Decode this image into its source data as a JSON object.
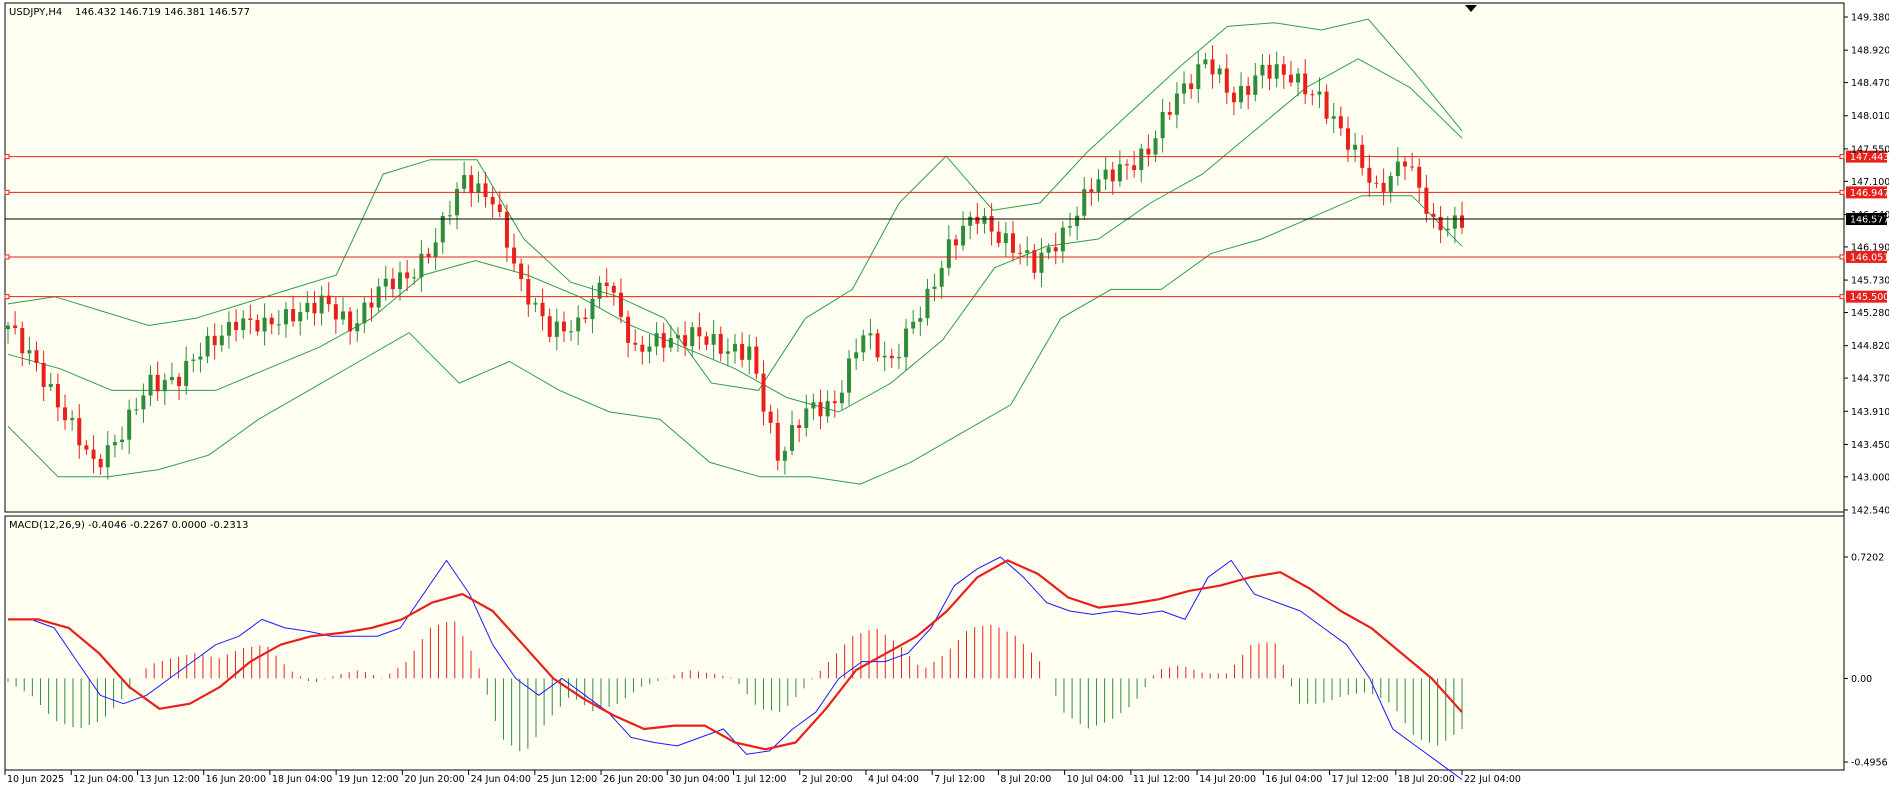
{
  "chart_data": [
    {
      "type": "candlestick",
      "symbol_label": "USDJPY,H4",
      "ohlc_readout": "146.432 146.719 146.381 146.577",
      "y_ticks": [
        "149.380",
        "148.920",
        "148.470",
        "148.010",
        "147.550",
        "147.100",
        "146.640",
        "146.190",
        "145.730",
        "145.280",
        "144.820",
        "144.370",
        "143.910",
        "143.450",
        "143.000",
        "142.540"
      ],
      "ylim": [
        142.54,
        149.38
      ],
      "x_ticks": [
        "10 Jun 2025",
        "12 Jun 04:00",
        "13 Jun 12:00",
        "16 Jun 20:00",
        "18 Jun 04:00",
        "19 Jun 12:00",
        "20 Jun 20:00",
        "24 Jun 04:00",
        "25 Jun 12:00",
        "26 Jun 20:00",
        "30 Jun 04:00",
        "1 Jul 12:00",
        "2 Jul 20:00",
        "4 Jul 04:00",
        "7 Jul 12:00",
        "8 Jul 20:00",
        "10 Jul 04:00",
        "11 Jul 12:00",
        "14 Jul 20:00",
        "16 Jul 04:00",
        "17 Jul 12:00",
        "18 Jul 20:00",
        "22 Jul 04:00"
      ],
      "close_path": [
        145.05,
        144.6,
        143.8,
        143.2,
        143.6,
        144.3,
        144.4,
        144.8,
        145.2,
        145.05,
        145.3,
        145.4,
        145.1,
        145.6,
        145.75,
        146.3,
        147.1,
        146.9,
        145.6,
        145.1,
        145.05,
        145.8,
        144.7,
        144.9,
        145.0,
        144.75,
        144.8,
        143.2,
        144.0,
        143.95,
        145.05,
        144.55,
        145.3,
        146.2,
        146.6,
        146.3,
        145.9,
        146.4,
        147.0,
        147.3,
        147.5,
        148.3,
        148.8,
        148.2,
        148.7,
        148.5,
        148.3,
        147.6,
        147.0,
        147.4,
        146.5,
        146.57
      ],
      "indicator_lines": {
        "upper_band": [
          145.4,
          145.5,
          145.3,
          145.1,
          145.2,
          145.4,
          145.6,
          145.8,
          147.2,
          147.4,
          147.4,
          146.3,
          145.7,
          145.5,
          145.2,
          144.3,
          144.2,
          145.2,
          145.6,
          146.8,
          147.45,
          146.7,
          146.8,
          147.5,
          148.1,
          148.7,
          149.25,
          149.3,
          149.2,
          149.35,
          148.6,
          147.8
        ],
        "middle_band": [
          144.7,
          144.5,
          144.2,
          144.2,
          144.2,
          144.5,
          144.8,
          145.2,
          145.8,
          146.0,
          145.8,
          145.5,
          145.1,
          144.8,
          144.5,
          144.1,
          143.9,
          144.3,
          144.9,
          145.9,
          146.2,
          146.3,
          146.8,
          147.2,
          147.8,
          148.4,
          148.8,
          148.4,
          147.7
        ],
        "lower_band": [
          143.7,
          143.0,
          143.0,
          143.1,
          143.3,
          143.8,
          144.2,
          144.6,
          145.0,
          144.3,
          144.6,
          144.2,
          143.9,
          143.8,
          143.2,
          143.0,
          143.0,
          142.9,
          143.2,
          143.6,
          144.0,
          145.2,
          145.6,
          145.6,
          146.1,
          146.3,
          146.6,
          146.9,
          146.9,
          146.2
        ]
      },
      "price_levels": [
        {
          "label": "147.443",
          "value": 147.443
        },
        {
          "label": "146.947",
          "value": 146.947
        },
        {
          "label": "146.051",
          "value": 146.051
        },
        {
          "label": "145.500",
          "value": 145.5
        }
      ],
      "current_price": {
        "label": "146.577",
        "value": 146.577
      },
      "colors": {
        "bull": "#2e8b3a",
        "bear": "#e8201c",
        "level": "#e8201c",
        "bands": "#2e9d4c",
        "current": "#000000"
      }
    },
    {
      "type": "macd",
      "label": "MACD(12,26,9) -0.4046 -0.2267 0.0000 -0.2313",
      "y_ticks": [
        "0.7202",
        "0.00",
        "-0.4956"
      ],
      "ylim": [
        -0.4956,
        0.7202
      ],
      "macd_line": [
        0.35,
        0.35,
        0.3,
        0.1,
        -0.1,
        -0.15,
        -0.1,
        0.0,
        0.1,
        0.2,
        0.25,
        0.35,
        0.3,
        0.28,
        0.25,
        0.25,
        0.25,
        0.3,
        0.5,
        0.7,
        0.5,
        0.2,
        0.0,
        -0.1,
        0.0,
        -0.1,
        -0.2,
        -0.35,
        -0.38,
        -0.4,
        -0.35,
        -0.3,
        -0.45,
        -0.43,
        -0.3,
        -0.2,
        0.0,
        0.1,
        0.1,
        0.15,
        0.3,
        0.55,
        0.65,
        0.72,
        0.6,
        0.45,
        0.4,
        0.38,
        0.4,
        0.38,
        0.4,
        0.35,
        0.6,
        0.7,
        0.5,
        0.45,
        0.4,
        0.3,
        0.2,
        0.0,
        -0.3,
        -0.4,
        -0.5,
        -0.6
      ],
      "signal_line": [
        0.35,
        0.35,
        0.3,
        0.15,
        -0.05,
        -0.18,
        -0.15,
        -0.05,
        0.1,
        0.2,
        0.25,
        0.27,
        0.3,
        0.35,
        0.45,
        0.5,
        0.4,
        0.2,
        0.0,
        -0.12,
        -0.22,
        -0.3,
        -0.28,
        -0.28,
        -0.38,
        -0.42,
        -0.38,
        -0.18,
        0.05,
        0.15,
        0.25,
        0.4,
        0.6,
        0.7,
        0.62,
        0.48,
        0.42,
        0.44,
        0.47,
        0.52,
        0.55,
        0.6,
        0.63,
        0.53,
        0.4,
        0.3,
        0.15,
        0.0,
        -0.2
      ],
      "histogram": [
        -0.02,
        -0.1,
        -0.25,
        -0.3,
        -0.25,
        -0.1,
        0.08,
        0.12,
        0.15,
        0.12,
        0.18,
        0.2,
        0.05,
        -0.03,
        0.02,
        0.05,
        0.0,
        0.1,
        0.3,
        0.35,
        0.1,
        -0.35,
        -0.45,
        -0.25,
        -0.1,
        -0.2,
        -0.15,
        -0.05,
        0.0,
        0.05,
        0.03,
        0.0,
        -0.18,
        -0.2,
        -0.05,
        0.1,
        0.25,
        0.3,
        0.2,
        0.05,
        0.15,
        0.3,
        0.32,
        0.25,
        0.1,
        -0.2,
        -0.3,
        -0.25,
        -0.15,
        0.05,
        0.08,
        0.03,
        0.03,
        0.2,
        0.22,
        -0.15,
        -0.15,
        -0.1,
        -0.08,
        -0.15,
        -0.35,
        -0.4,
        -0.3
      ],
      "colors": {
        "macd": "#1a1aff",
        "signal": "#e8201c",
        "hist_up": "#e8201c",
        "hist_down": "#2e8b3a"
      }
    }
  ]
}
